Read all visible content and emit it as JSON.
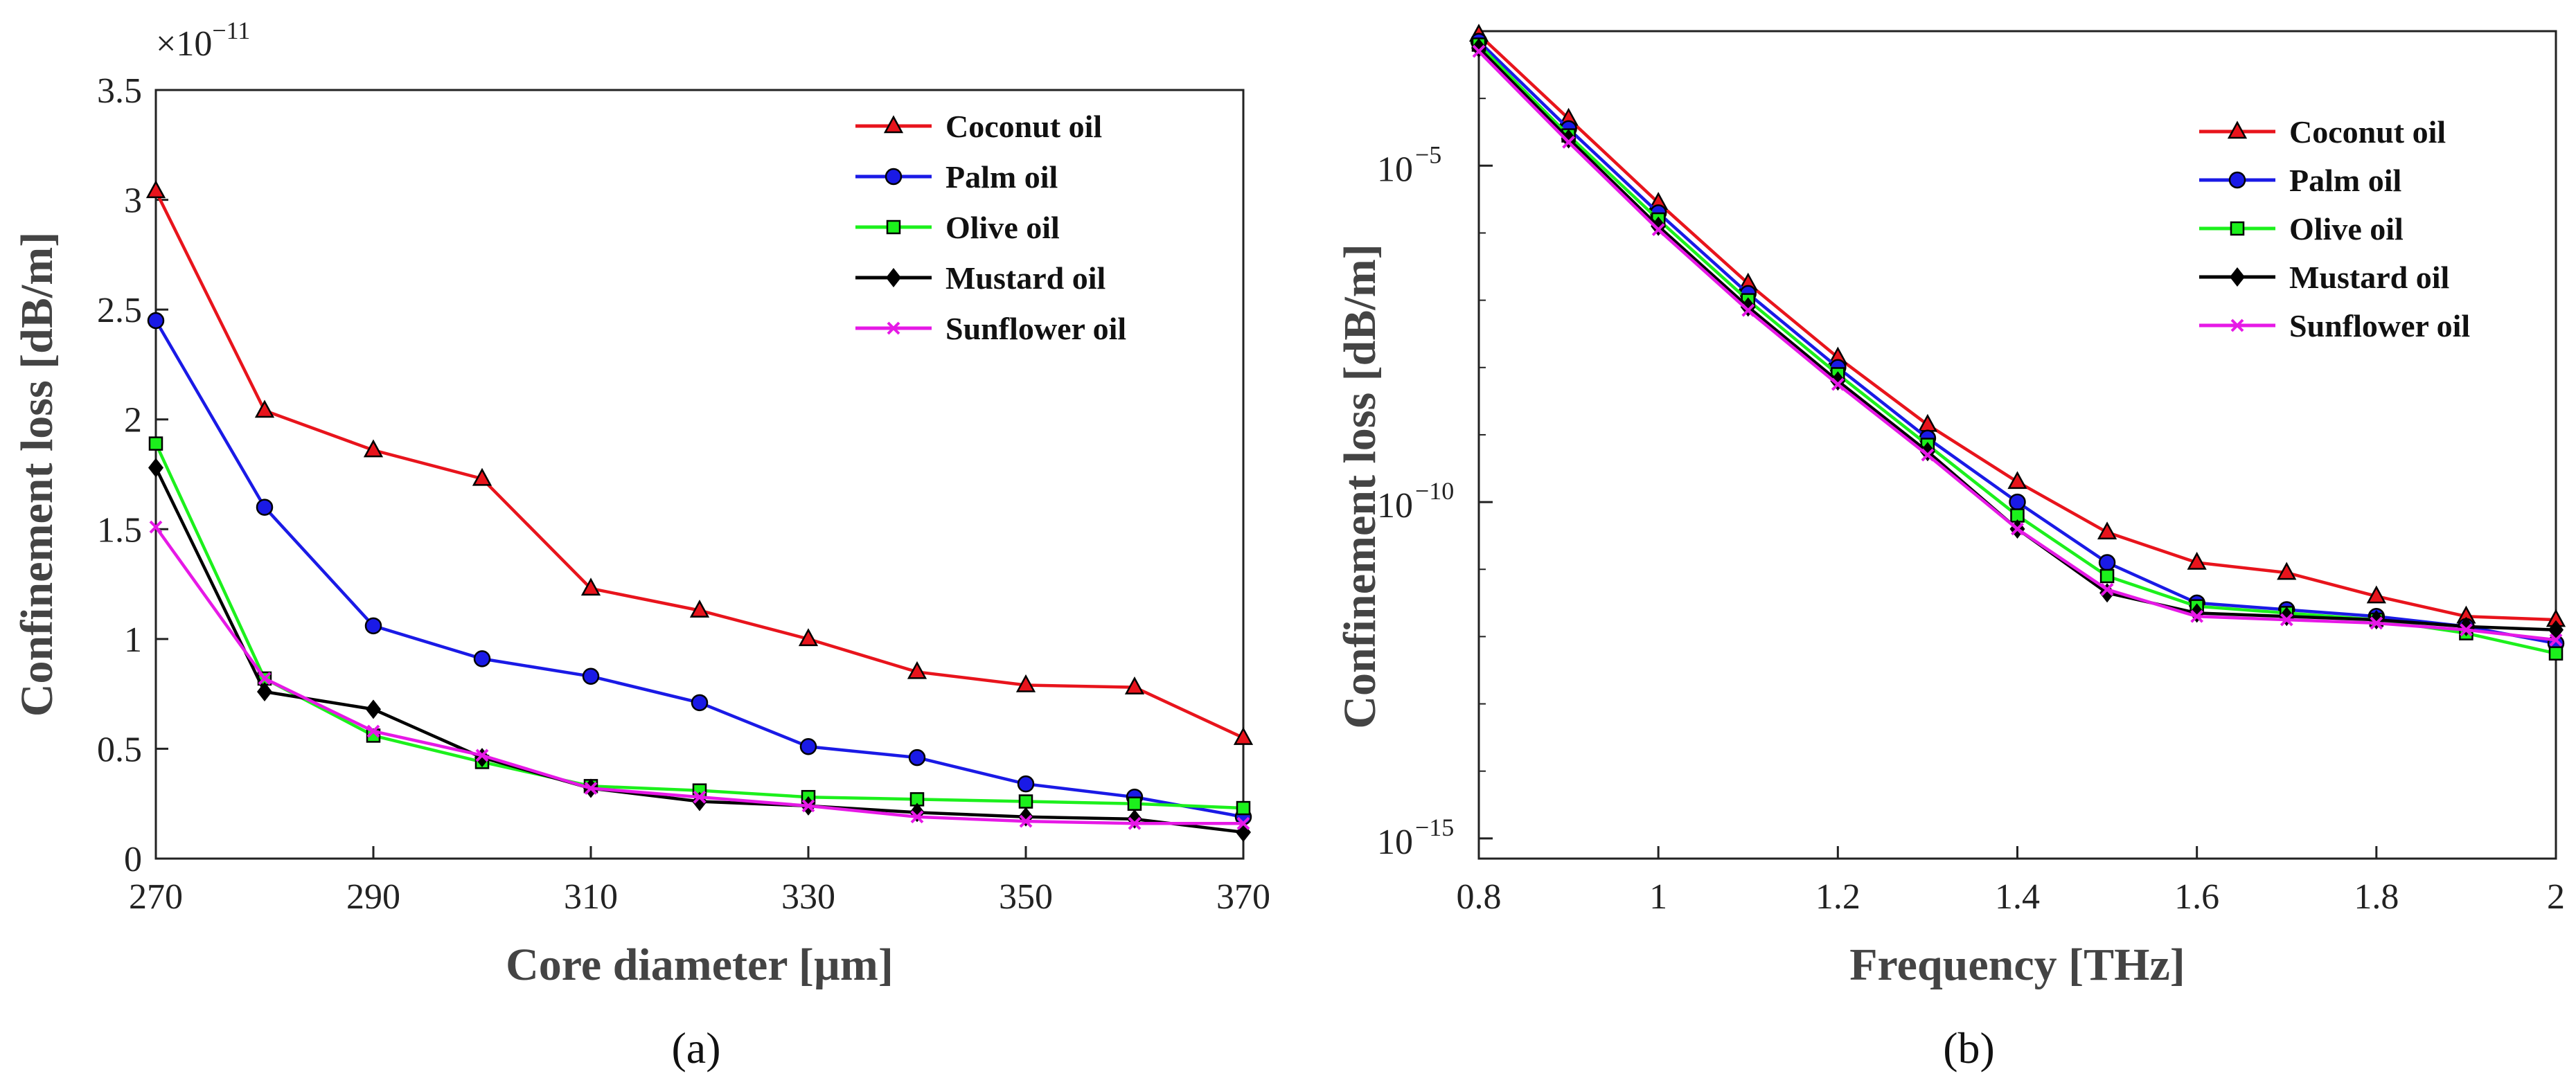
{
  "chart_data": [
    {
      "type": "line",
      "panel_label": "(a)",
      "title": "",
      "xlabel": "Core diameter [µm]",
      "ylabel": "Confinement loss [dB/m]",
      "y_multiplier": "×10",
      "y_multiplier_exp": "−11",
      "x": [
        270,
        280,
        290,
        300,
        310,
        320,
        330,
        340,
        350,
        360,
        370
      ],
      "xlim": [
        270,
        370
      ],
      "ylim": [
        0,
        3.5
      ],
      "xticks": [
        "270",
        "290",
        "310",
        "330",
        "350",
        "370"
      ],
      "xtick_values": [
        270,
        290,
        310,
        330,
        350,
        370
      ],
      "yticks": [
        "0",
        "0.5",
        "1",
        "1.5",
        "2",
        "2.5",
        "3",
        "3.5"
      ],
      "ytick_values": [
        0,
        0.5,
        1,
        1.5,
        2,
        2.5,
        3,
        3.5
      ],
      "legend_position": "top-right",
      "series": [
        {
          "name": "Coconut oil",
          "color": "#e8141c",
          "marker": "triangle",
          "values": [
            3.04,
            2.04,
            1.86,
            1.73,
            1.23,
            1.13,
            1.0,
            0.85,
            0.79,
            0.78,
            0.55
          ]
        },
        {
          "name": "Palm oil",
          "color": "#1a1ae6",
          "marker": "circle",
          "values": [
            2.45,
            1.6,
            1.06,
            0.91,
            0.83,
            0.71,
            0.51,
            0.46,
            0.34,
            0.28,
            0.19
          ]
        },
        {
          "name": "Olive oil",
          "color": "#1cf01c",
          "marker": "square",
          "values": [
            1.89,
            0.82,
            0.56,
            0.44,
            0.33,
            0.31,
            0.28,
            0.27,
            0.26,
            0.25,
            0.23
          ]
        },
        {
          "name": "Mustard oil",
          "color": "#000000",
          "marker": "diamond",
          "values": [
            1.78,
            0.76,
            0.68,
            0.46,
            0.32,
            0.26,
            0.24,
            0.21,
            0.19,
            0.18,
            0.12
          ]
        },
        {
          "name": "Sunflower oil",
          "color": "#e619e6",
          "marker": "cross",
          "values": [
            1.51,
            0.82,
            0.58,
            0.47,
            0.32,
            0.28,
            0.24,
            0.19,
            0.17,
            0.16,
            0.16
          ]
        }
      ]
    },
    {
      "type": "line",
      "panel_label": "(b)",
      "title": "",
      "xlabel": "Frequency [THz]",
      "ylabel": "Confinement loss [dB/m]",
      "yscale": "log",
      "x": [
        0.8,
        0.9,
        1.0,
        1.1,
        1.2,
        1.3,
        1.4,
        1.5,
        1.6,
        1.7,
        1.8,
        1.9,
        2.0
      ],
      "xlim": [
        0.8,
        2.0
      ],
      "ylim_log10": [
        -15.3,
        -3
      ],
      "xticks": [
        "0.8",
        "1",
        "1.2",
        "1.4",
        "1.6",
        "1.8",
        "2"
      ],
      "xtick_values": [
        0.8,
        1.0,
        1.2,
        1.4,
        1.6,
        1.8,
        2.0
      ],
      "yticks": [
        {
          "base": "10",
          "exp": "−5",
          "log10": -5
        },
        {
          "base": "10",
          "exp": "−10",
          "log10": -10
        },
        {
          "base": "10",
          "exp": "−15",
          "log10": -15
        }
      ],
      "legend_position": "top-right",
      "series": [
        {
          "name": "Coconut oil",
          "color": "#e8141c",
          "marker": "triangle",
          "log10_values": [
            -3.05,
            -4.3,
            -5.55,
            -6.75,
            -7.85,
            -8.85,
            -9.7,
            -10.45,
            -10.9,
            -11.05,
            -11.4,
            -11.7,
            -11.75
          ]
        },
        {
          "name": "Palm oil",
          "color": "#1a1ae6",
          "marker": "circle",
          "log10_values": [
            -3.15,
            -4.45,
            -5.7,
            -6.9,
            -8.0,
            -9.05,
            -10.0,
            -10.9,
            -11.5,
            -11.6,
            -11.7,
            -11.85,
            -12.1
          ]
        },
        {
          "name": "Olive oil",
          "color": "#1cf01c",
          "marker": "square",
          "log10_values": [
            -3.2,
            -4.55,
            -5.8,
            -7.0,
            -8.1,
            -9.15,
            -10.2,
            -11.1,
            -11.55,
            -11.65,
            -11.75,
            -11.95,
            -12.25
          ]
        },
        {
          "name": "Mustard oil",
          "color": "#000000",
          "marker": "diamond",
          "log10_values": [
            -3.25,
            -4.6,
            -5.9,
            -7.1,
            -8.2,
            -9.25,
            -10.4,
            -11.35,
            -11.65,
            -11.7,
            -11.75,
            -11.85,
            -11.9
          ]
        },
        {
          "name": "Sunflower oil",
          "color": "#e619e6",
          "marker": "cross",
          "log10_values": [
            -3.3,
            -4.65,
            -5.95,
            -7.15,
            -8.25,
            -9.3,
            -10.4,
            -11.3,
            -11.7,
            -11.75,
            -11.8,
            -11.9,
            -12.05
          ]
        }
      ]
    }
  ]
}
